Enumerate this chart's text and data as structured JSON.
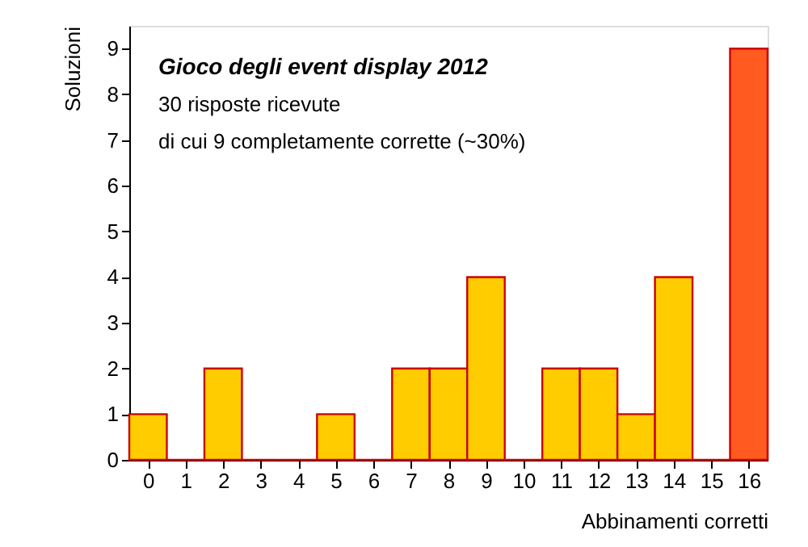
{
  "chart_data": {
    "type": "histogram",
    "title": "Gioco degli event display 2012",
    "annotations": [
      "30 risposte ricevute",
      "di cui 9 completamente corrette (~30%)"
    ],
    "xlabel": "Abbinamenti corretti",
    "ylabel": "Soluzioni",
    "bins": [
      -0.5,
      0.5,
      1.5,
      2.5,
      3.5,
      4.5,
      5.5,
      6.5,
      7.5,
      8.5,
      9.5,
      10.5,
      11.5,
      12.5,
      13.5,
      14.5,
      15.5,
      16.5
    ],
    "values": [
      1,
      0,
      2,
      0,
      0,
      1,
      0,
      2,
      2,
      4,
      0,
      2,
      2,
      1,
      4,
      0,
      9
    ],
    "colors": [
      "#ffcc00",
      "#cc0000",
      "#ffcc00",
      "#cc0000",
      "#cc0000",
      "#ffcc00",
      "#cc0000",
      "#ffcc00",
      "#ffcc00",
      "#ffcc00",
      "#cc0000",
      "#ffcc00",
      "#ffcc00",
      "#ffcc00",
      "#ffcc00",
      "#cc0000",
      "#ff5a1f"
    ],
    "xlim": [
      -0.5,
      16.5
    ],
    "xticks": [
      0,
      1,
      2,
      3,
      4,
      5,
      6,
      7,
      8,
      9,
      10,
      11,
      12,
      13,
      14,
      15,
      16
    ],
    "ylim": [
      0,
      9.5
    ],
    "yticks": [
      0,
      1,
      2,
      3,
      4,
      5,
      6,
      7,
      8,
      9
    ],
    "grid": false
  }
}
